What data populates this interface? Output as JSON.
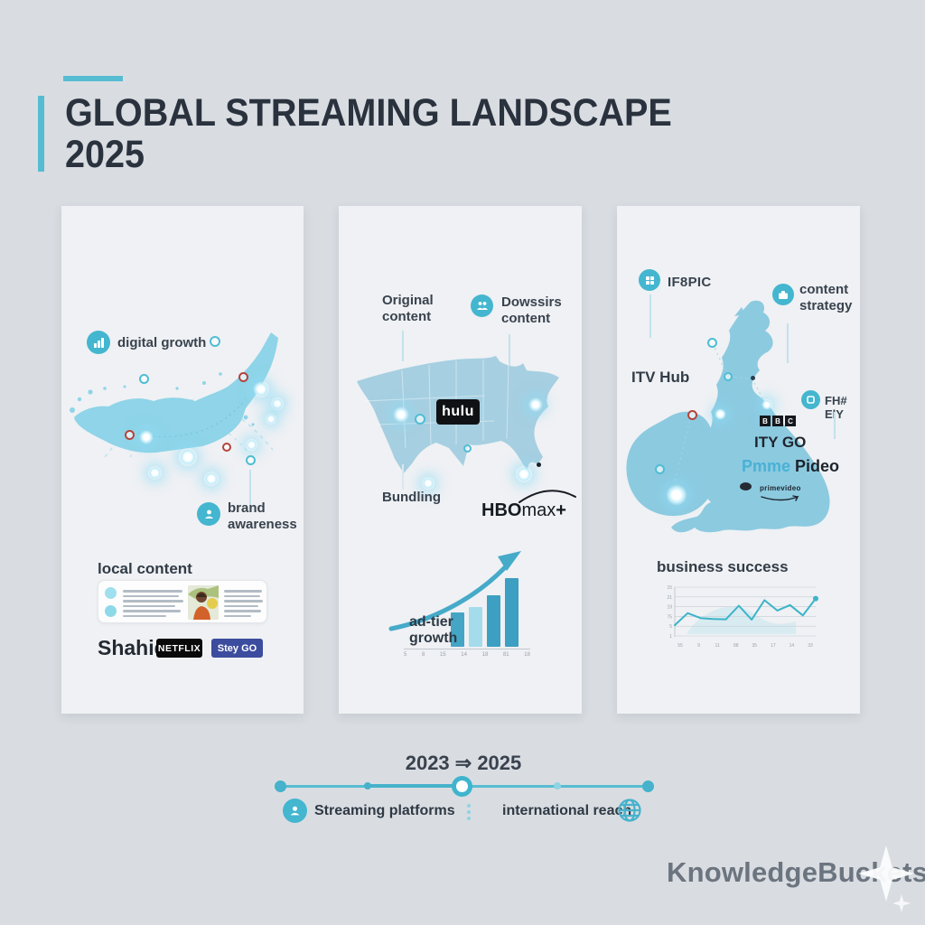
{
  "header": {
    "title": "GLOBAL STREAMING LANDSCAPE",
    "year": "2025"
  },
  "colors": {
    "accent": "#4db8d0",
    "title_text": "#2a323e",
    "uae_map": "#8fd4e8",
    "usa_map": "#a6cfe1",
    "uk_map": "#8ccae0",
    "netflix_bg": "#0a0a0a",
    "steygo_bg": "#3c4c9e",
    "hulu_bg": "#101114"
  },
  "icons": {
    "digital_growth": "chart-icon",
    "brand_awareness": "person-icon",
    "domestic_content": "people-icon",
    "iplayer": "grid-icon",
    "content_strategy": "briefcase-icon",
    "freely": "square-icon",
    "streaming_platforms": "person-icon",
    "international_reach": "globe-icon"
  },
  "cards": [
    {
      "region": "middle-east",
      "digital_growth": "digital growth",
      "brand_l1": "brand",
      "brand_l2": "awareness",
      "local_content": "local content",
      "logo_shahid": "Shahid",
      "logo_netflix": "NETFLIX",
      "logo_steygo": "Stey GO"
    },
    {
      "region": "usa",
      "original_l1": "Original",
      "original_l2": "content",
      "domestic_l1": "Dowssirs",
      "domestic_l2": "content",
      "bundling": "Bundling",
      "logo_hulu": "hulu",
      "hbo_bold": "HBO",
      "hbo_max": "max",
      "hbo_plus": "+",
      "adtier_l1": "ad-tier",
      "adtier_l2": "growth"
    },
    {
      "region": "uk",
      "iplayer_label": "IF8PIC",
      "strategy_l1": "content",
      "strategy_l2": "strategy",
      "itv_hub": "ITV Hub",
      "freely_label": "FH# ElY",
      "bbc": [
        "B",
        "B",
        "C"
      ],
      "itv_go": "ITY GO",
      "prime_l1": "Pmme",
      "prime_l2": "Pideo",
      "prime_small": "primevideo",
      "business_success": "business success"
    }
  ],
  "timeline": {
    "range": "2023 ⇒ 2025",
    "left": "Streaming platforms",
    "right": "international reach"
  },
  "footer": {
    "brand": "KnowledgeBuckets"
  },
  "chart_data": [
    {
      "type": "bar",
      "title": "ad-tier growth",
      "categories": [
        "",
        "",
        "",
        ""
      ],
      "values": [
        38,
        44,
        57,
        76
      ],
      "colors": [
        "#45a5c5",
        "#a5dcec",
        "#3d9fc2",
        "#3d9fc2"
      ],
      "x_ticks": [
        "5",
        "8",
        "15",
        "14",
        "18",
        "81",
        "18"
      ],
      "xlabel": "",
      "ylabel": "",
      "grid": false
    },
    {
      "type": "line",
      "title": "business success",
      "values": [
        3.3,
        7,
        5.5,
        5.2,
        5.1,
        9.3,
        5,
        11,
        7.8,
        9.5,
        6.3,
        11.5
      ],
      "ylim": [
        0,
        15
      ],
      "y_ticks": [
        "15",
        "21",
        "19",
        "75",
        "5",
        "1"
      ],
      "x_ticks": [
        "55",
        "9",
        "11",
        "98",
        "35",
        "17",
        "14",
        "33"
      ],
      "line_color": "#3cb3c8",
      "grid": true,
      "legend": "none"
    }
  ]
}
